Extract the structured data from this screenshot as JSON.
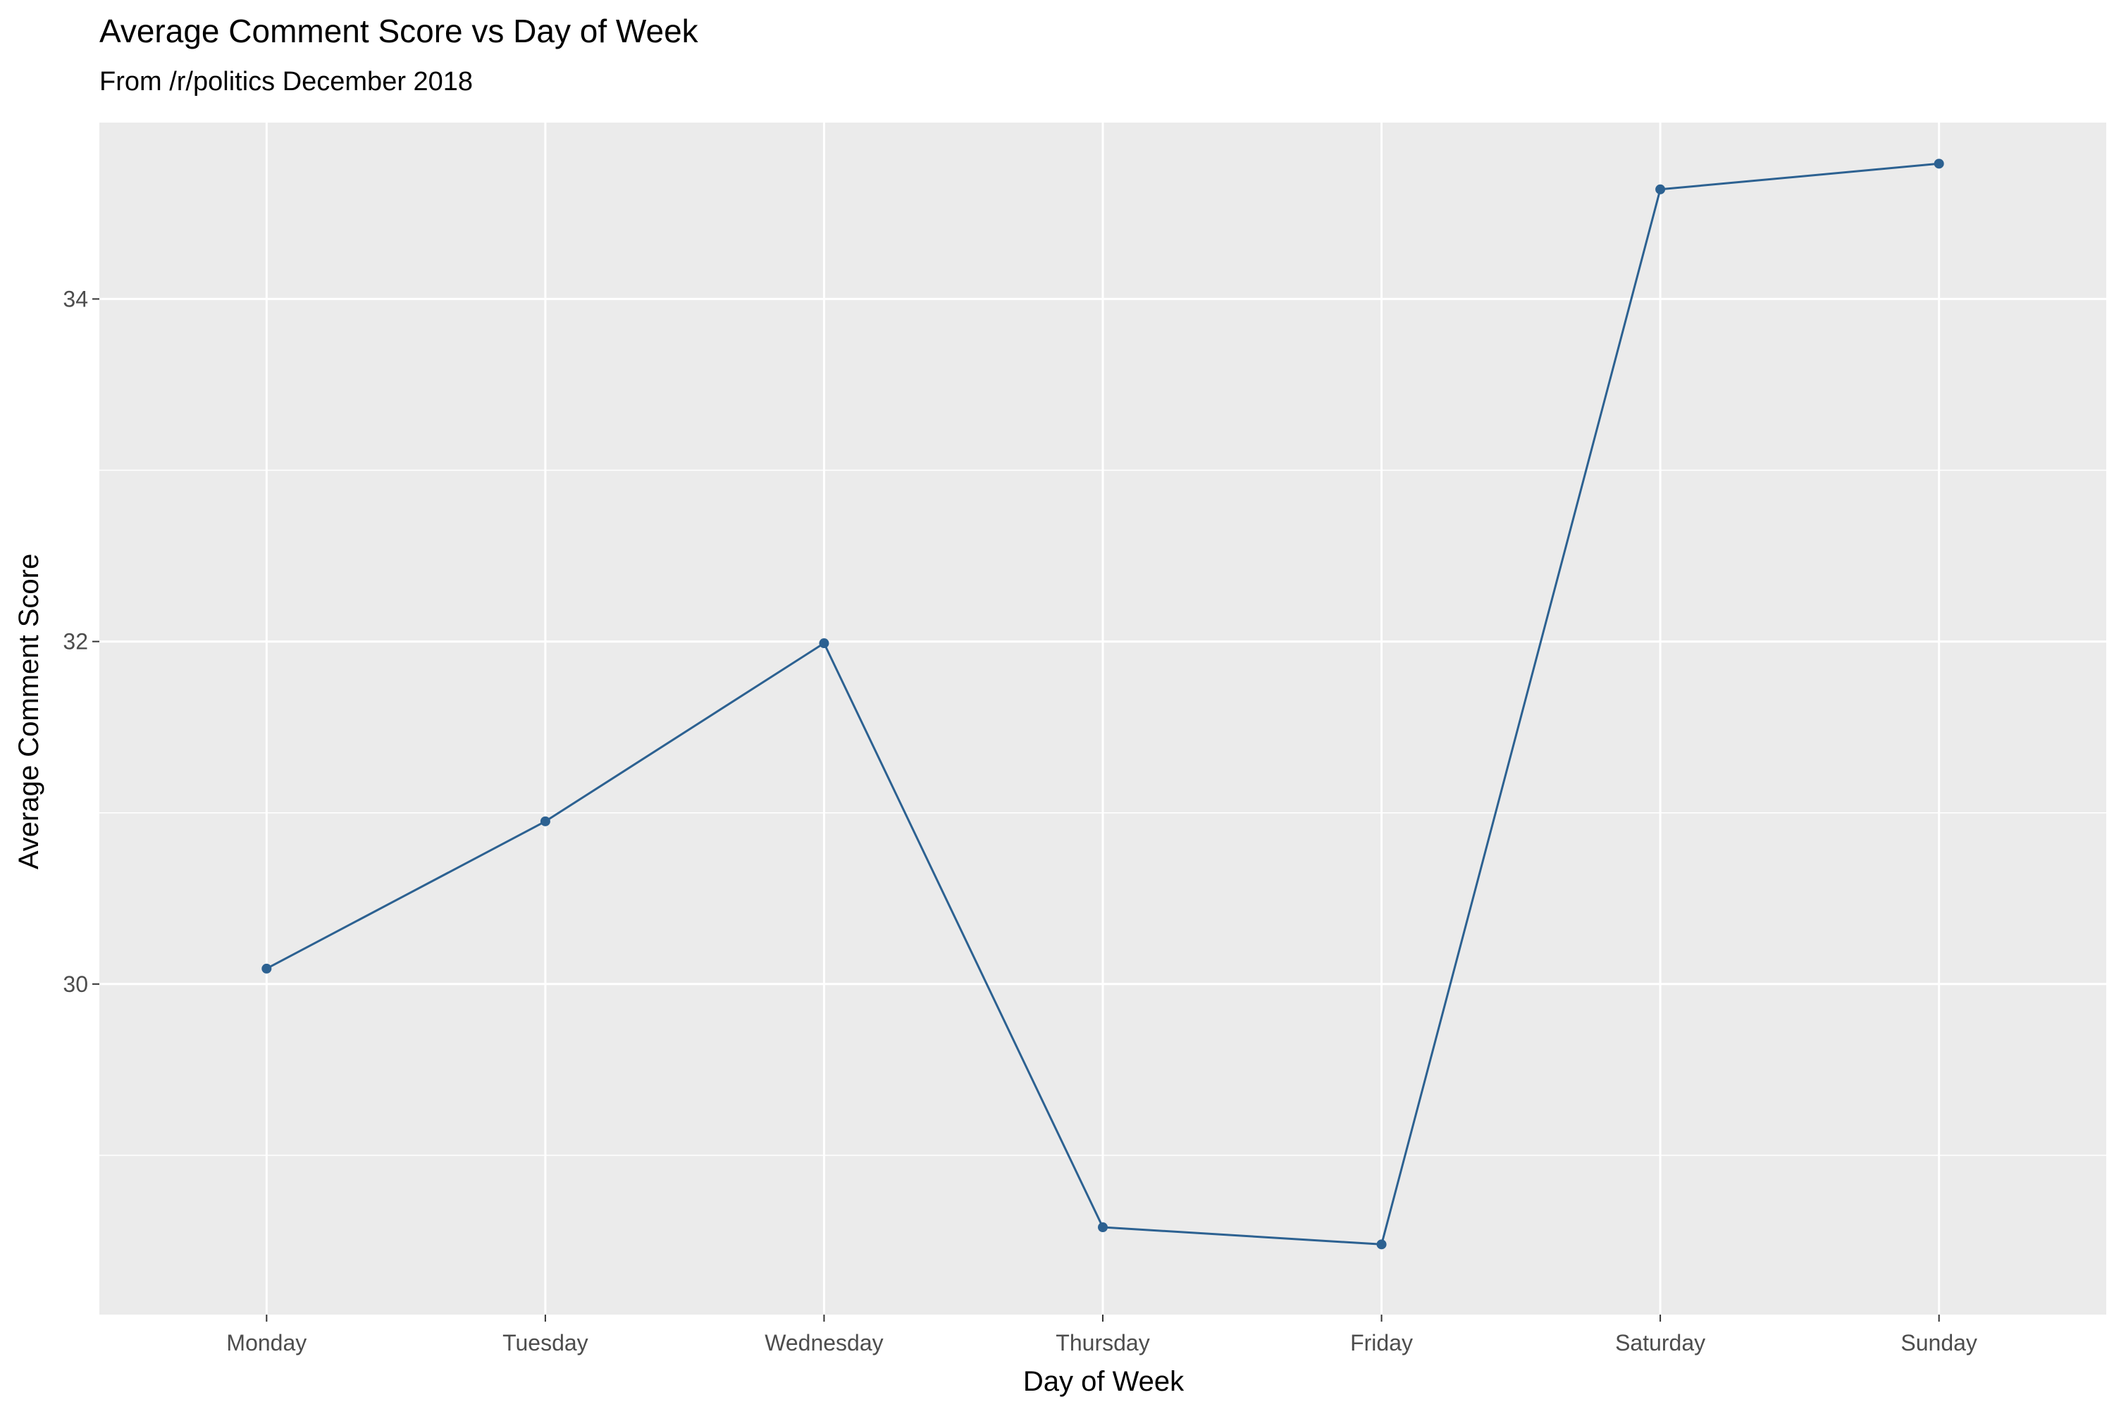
{
  "chart_data": {
    "type": "line",
    "title": "Average Comment Score vs Day of Week",
    "subtitle": "From /r/politics December 2018",
    "xlabel": "Day of Week",
    "ylabel": "Average Comment Score",
    "categories": [
      "Monday",
      "Tuesday",
      "Wednesday",
      "Thursday",
      "Friday",
      "Saturday",
      "Sunday"
    ],
    "series": [
      {
        "values": [
          30.09,
          30.95,
          31.99,
          28.58,
          28.48,
          34.64,
          34.79
        ]
      }
    ],
    "ylim": [
      28.07,
      35.03
    ],
    "yticks": [
      30,
      32,
      34
    ],
    "yticks_minor": [
      29,
      31,
      33
    ],
    "grid": true,
    "legend": "none",
    "colors": {
      "panel": "#ebebeb",
      "grid": "#ffffff",
      "line": "#2c6191",
      "point": "#2c6191"
    }
  }
}
